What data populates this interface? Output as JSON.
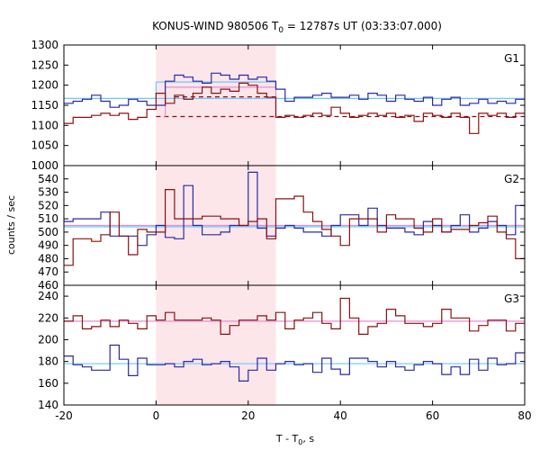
{
  "title_prefix": "KONUS-WIND 980506 T",
  "title_sub": "0",
  "title_suffix": " = 12787s UT (03:33:07.000)",
  "xlabel_prefix": "T - T",
  "xlabel_sub": "0",
  "xlabel_suffix": ", s",
  "ylabel": "counts / sec",
  "colors": {
    "blue": "#2a2aa0",
    "red": "#8b1010",
    "bg_blue": "#6ec6ff",
    "bg_pink": "#e88ecf",
    "shade": "#fde6ea",
    "red_dashed": "#8b1010"
  },
  "chart_data": [
    {
      "type": "line",
      "name": "G1",
      "x_edges": [
        -20,
        -18,
        -16,
        -14,
        -12,
        -10,
        -8,
        -6,
        -4,
        -2,
        0,
        2,
        4,
        6,
        8,
        10,
        12,
        14,
        16,
        18,
        20,
        22,
        24,
        26,
        28,
        30,
        32,
        34,
        36,
        38,
        40,
        42,
        44,
        46,
        48,
        50,
        52,
        54,
        56,
        58,
        60,
        62,
        64,
        66,
        68,
        70,
        72,
        74,
        76,
        78,
        80
      ],
      "xlim": [
        -20,
        80
      ],
      "ylim": [
        1000,
        1300
      ],
      "yticks": [
        1000,
        1050,
        1100,
        1150,
        1200,
        1250,
        1300
      ],
      "series": [
        {
          "color": "blue",
          "values": [
            1155,
            1160,
            1165,
            1175,
            1160,
            1145,
            1150,
            1165,
            1160,
            1150,
            1150,
            1210,
            1225,
            1220,
            1210,
            1205,
            1230,
            1225,
            1215,
            1225,
            1215,
            1220,
            1210,
            1190,
            1160,
            1170,
            1170,
            1175,
            1180,
            1170,
            1170,
            1175,
            1165,
            1180,
            1175,
            1160,
            1175,
            1165,
            1160,
            1170,
            1150,
            1165,
            1170,
            1150,
            1155,
            1165,
            1155,
            1160,
            1155,
            1165
          ]
        },
        {
          "color": "red",
          "values": [
            1105,
            1120,
            1120,
            1125,
            1130,
            1125,
            1130,
            1115,
            1120,
            1140,
            1180,
            1155,
            1175,
            1165,
            1180,
            1195,
            1180,
            1190,
            1185,
            1205,
            1200,
            1180,
            1170,
            1120,
            1125,
            1120,
            1125,
            1130,
            1125,
            1145,
            1130,
            1120,
            1125,
            1130,
            1125,
            1130,
            1120,
            1125,
            1110,
            1130,
            1125,
            1120,
            1130,
            1120,
            1080,
            1130,
            1125,
            1130,
            1120,
            1130
          ]
        }
      ],
      "bg_levels": [
        {
          "color": "bg_blue",
          "y": 1167,
          "x0": -20,
          "x1": 80
        },
        {
          "color": "bg_blue",
          "y": 1208,
          "x0": 0,
          "x1": 26
        },
        {
          "color": "bg_pink",
          "y": 1195,
          "x0": 2,
          "x1": 26
        },
        {
          "color": "red_dashed",
          "y": 1171,
          "x0": 4,
          "x1": 26,
          "dashed": true
        },
        {
          "color": "red_dashed",
          "y": 1122,
          "x0": 0,
          "x1": 80,
          "dashed": true
        }
      ]
    },
    {
      "type": "line",
      "name": "G2",
      "x_edges": [
        -20,
        -18,
        -16,
        -14,
        -12,
        -10,
        -8,
        -6,
        -4,
        -2,
        0,
        2,
        4,
        6,
        8,
        10,
        12,
        14,
        16,
        18,
        20,
        22,
        24,
        26,
        28,
        30,
        32,
        34,
        36,
        38,
        40,
        42,
        44,
        46,
        48,
        50,
        52,
        54,
        56,
        58,
        60,
        62,
        64,
        66,
        68,
        70,
        72,
        74,
        76,
        78,
        80
      ],
      "xlim": [
        -20,
        80
      ],
      "ylim": [
        460,
        550
      ],
      "yticks": [
        460,
        470,
        480,
        490,
        500,
        510,
        520,
        530,
        540
      ],
      "series": [
        {
          "color": "blue",
          "values": [
            508,
            510,
            510,
            510,
            515,
            497,
            497,
            497,
            490,
            498,
            505,
            496,
            495,
            535,
            505,
            498,
            498,
            500,
            505,
            505,
            545,
            503,
            497,
            503,
            505,
            503,
            500,
            500,
            497,
            505,
            513,
            513,
            505,
            518,
            505,
            503,
            503,
            500,
            498,
            508,
            505,
            500,
            505,
            513,
            500,
            503,
            508,
            505,
            498,
            520
          ]
        },
        {
          "color": "red",
          "values": [
            475,
            495,
            495,
            493,
            498,
            515,
            497,
            483,
            502,
            500,
            500,
            532,
            510,
            510,
            510,
            512,
            512,
            510,
            510,
            505,
            508,
            510,
            495,
            525,
            525,
            527,
            515,
            508,
            502,
            497,
            490,
            510,
            510,
            510,
            500,
            513,
            510,
            510,
            503,
            500,
            510,
            500,
            502,
            502,
            505,
            507,
            512,
            500,
            495,
            480
          ]
        }
      ],
      "bg_levels": [
        {
          "color": "bg_blue",
          "y": 504,
          "x0": -20,
          "x1": 80
        },
        {
          "color": "bg_pink",
          "y": 505,
          "x0": -20,
          "x1": 80
        }
      ]
    },
    {
      "type": "line",
      "name": "G3",
      "x_edges": [
        -20,
        -18,
        -16,
        -14,
        -12,
        -10,
        -8,
        -6,
        -4,
        -2,
        0,
        2,
        4,
        6,
        8,
        10,
        12,
        14,
        16,
        18,
        20,
        22,
        24,
        26,
        28,
        30,
        32,
        34,
        36,
        38,
        40,
        42,
        44,
        46,
        48,
        50,
        52,
        54,
        56,
        58,
        60,
        62,
        64,
        66,
        68,
        70,
        72,
        74,
        76,
        78,
        80
      ],
      "xlim": [
        -20,
        80
      ],
      "ylim": [
        140,
        250
      ],
      "yticks": [
        140,
        160,
        180,
        200,
        220,
        240
      ],
      "series": [
        {
          "color": "blue",
          "values": [
            185,
            177,
            175,
            172,
            172,
            195,
            182,
            167,
            183,
            177,
            177,
            178,
            175,
            180,
            182,
            177,
            178,
            180,
            175,
            162,
            172,
            183,
            172,
            178,
            180,
            177,
            178,
            170,
            183,
            173,
            168,
            183,
            183,
            180,
            175,
            180,
            175,
            172,
            177,
            180,
            178,
            168,
            175,
            168,
            182,
            172,
            183,
            177,
            178,
            188
          ]
        },
        {
          "color": "red",
          "values": [
            217,
            222,
            210,
            212,
            218,
            212,
            218,
            215,
            210,
            222,
            218,
            225,
            218,
            218,
            218,
            220,
            218,
            205,
            213,
            218,
            218,
            222,
            218,
            225,
            210,
            218,
            220,
            225,
            215,
            210,
            238,
            220,
            205,
            212,
            215,
            228,
            222,
            215,
            215,
            212,
            215,
            228,
            220,
            220,
            208,
            213,
            218,
            218,
            208,
            215
          ]
        }
      ],
      "bg_levels": [
        {
          "color": "bg_blue",
          "y": 178,
          "x0": -20,
          "x1": 80
        },
        {
          "color": "bg_pink",
          "y": 217,
          "x0": -20,
          "x1": 80
        }
      ]
    }
  ],
  "x_axis": {
    "xlim": [
      -20,
      80
    ],
    "xticks": [
      -20,
      0,
      20,
      40,
      60,
      80
    ],
    "xtick_labels": [
      "-20",
      "0",
      "20",
      "40",
      "60",
      "80"
    ]
  },
  "shaded_interval": [
    0,
    26
  ]
}
